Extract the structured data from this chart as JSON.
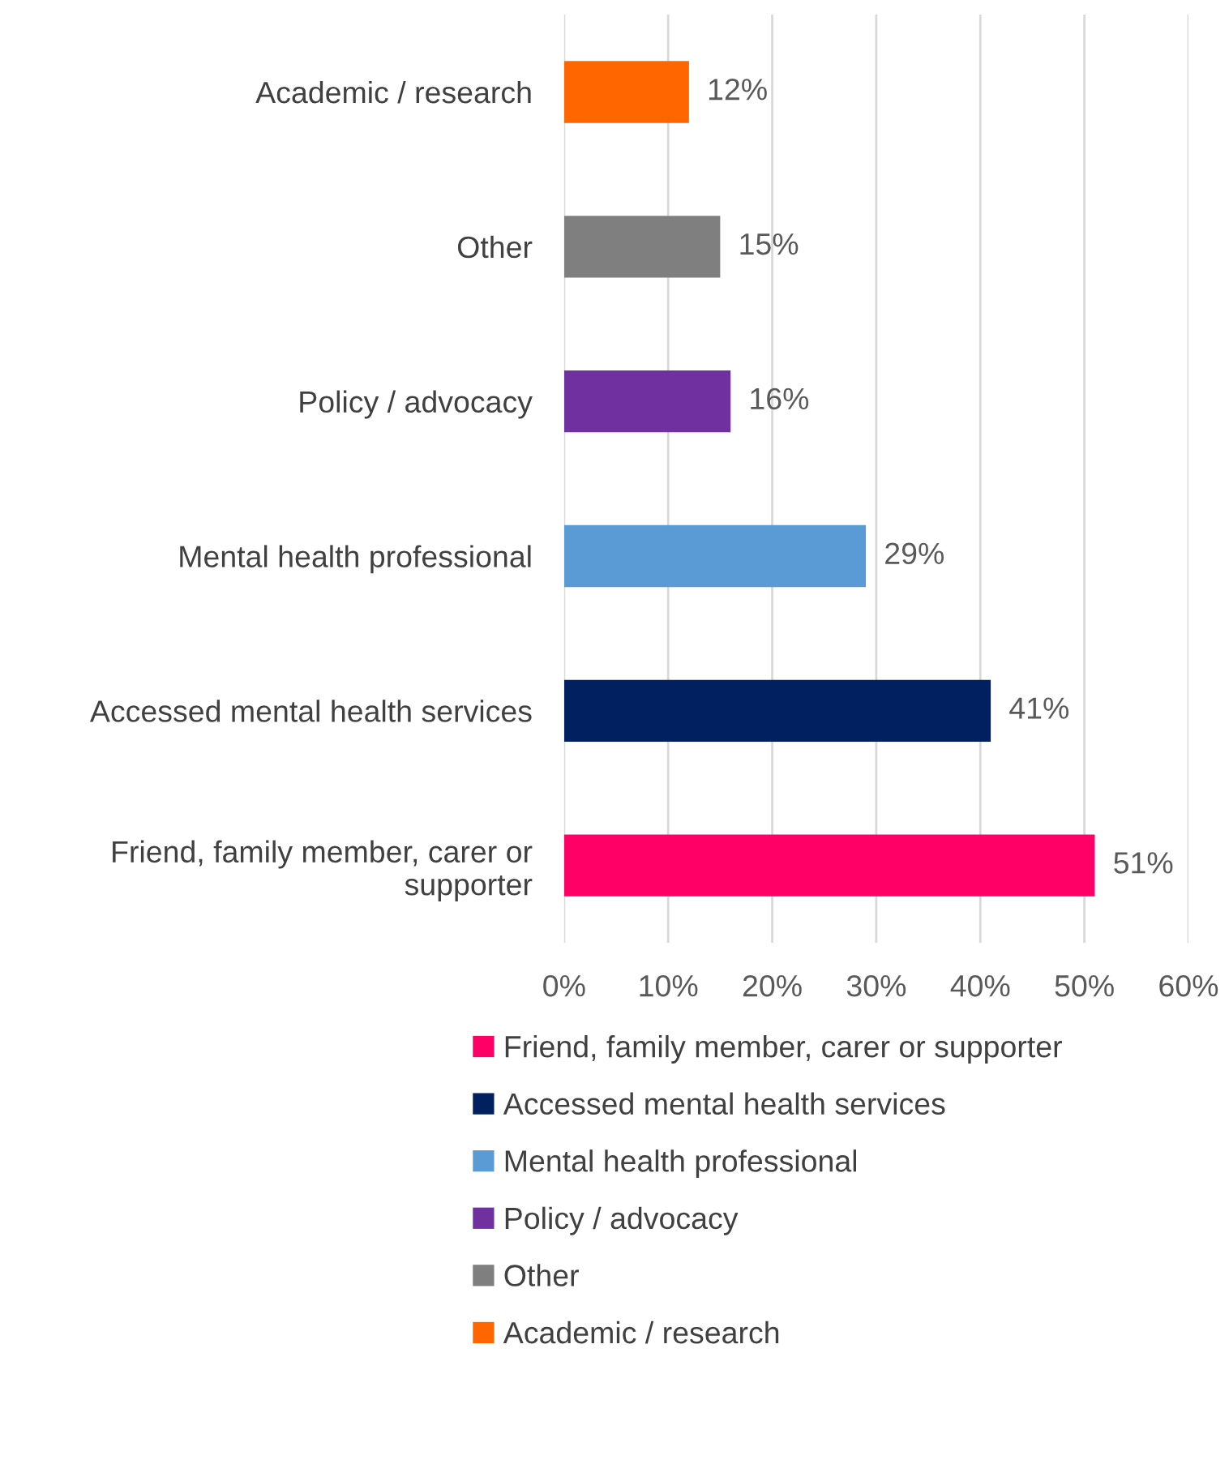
{
  "chart_data": {
    "type": "bar",
    "orientation": "horizontal",
    "categories": [
      "Academic / research",
      "Other",
      "Policy / advocacy",
      "Mental health professional",
      "Accessed mental health services",
      "Friend, family member, carer or supporter"
    ],
    "series": [
      {
        "name": "Friend, family member, carer or supporter",
        "color": "#ff0066",
        "values": [
          null,
          null,
          null,
          null,
          null,
          51
        ],
        "value_labels": [
          null,
          null,
          null,
          null,
          null,
          "51%"
        ]
      },
      {
        "name": "Accessed mental health services",
        "color": "#002060",
        "values": [
          null,
          null,
          null,
          null,
          41,
          null
        ],
        "value_labels": [
          null,
          null,
          null,
          null,
          "41%",
          null
        ]
      },
      {
        "name": "Mental health professional",
        "color": "#5b9bd5",
        "values": [
          null,
          null,
          null,
          29,
          null,
          null
        ],
        "value_labels": [
          null,
          null,
          null,
          "29%",
          null,
          null
        ]
      },
      {
        "name": "Policy / advocacy",
        "color": "#7030a0",
        "values": [
          null,
          null,
          16,
          null,
          null,
          null
        ],
        "value_labels": [
          null,
          null,
          "16%",
          null,
          null,
          null
        ]
      },
      {
        "name": "Other",
        "color": "#7f7f7f",
        "values": [
          null,
          15,
          null,
          null,
          null,
          null
        ],
        "value_labels": [
          null,
          "15%",
          null,
          null,
          null,
          null
        ]
      },
      {
        "name": "Academic / research",
        "color": "#ff6600",
        "values": [
          12,
          null,
          null,
          null,
          null,
          null
        ],
        "value_labels": [
          "12%",
          null,
          null,
          null,
          null,
          null
        ]
      }
    ],
    "xlim": [
      0,
      60
    ],
    "xticks": [
      {
        "value": 0,
        "label": "0%"
      },
      {
        "value": 10,
        "label": "10%"
      },
      {
        "value": 20,
        "label": "20%"
      },
      {
        "value": 30,
        "label": "30%"
      },
      {
        "value": 40,
        "label": "40%"
      },
      {
        "value": 50,
        "label": "50%"
      },
      {
        "value": 60,
        "label": "60%"
      }
    ],
    "grid": "x",
    "legend": "bottom"
  }
}
